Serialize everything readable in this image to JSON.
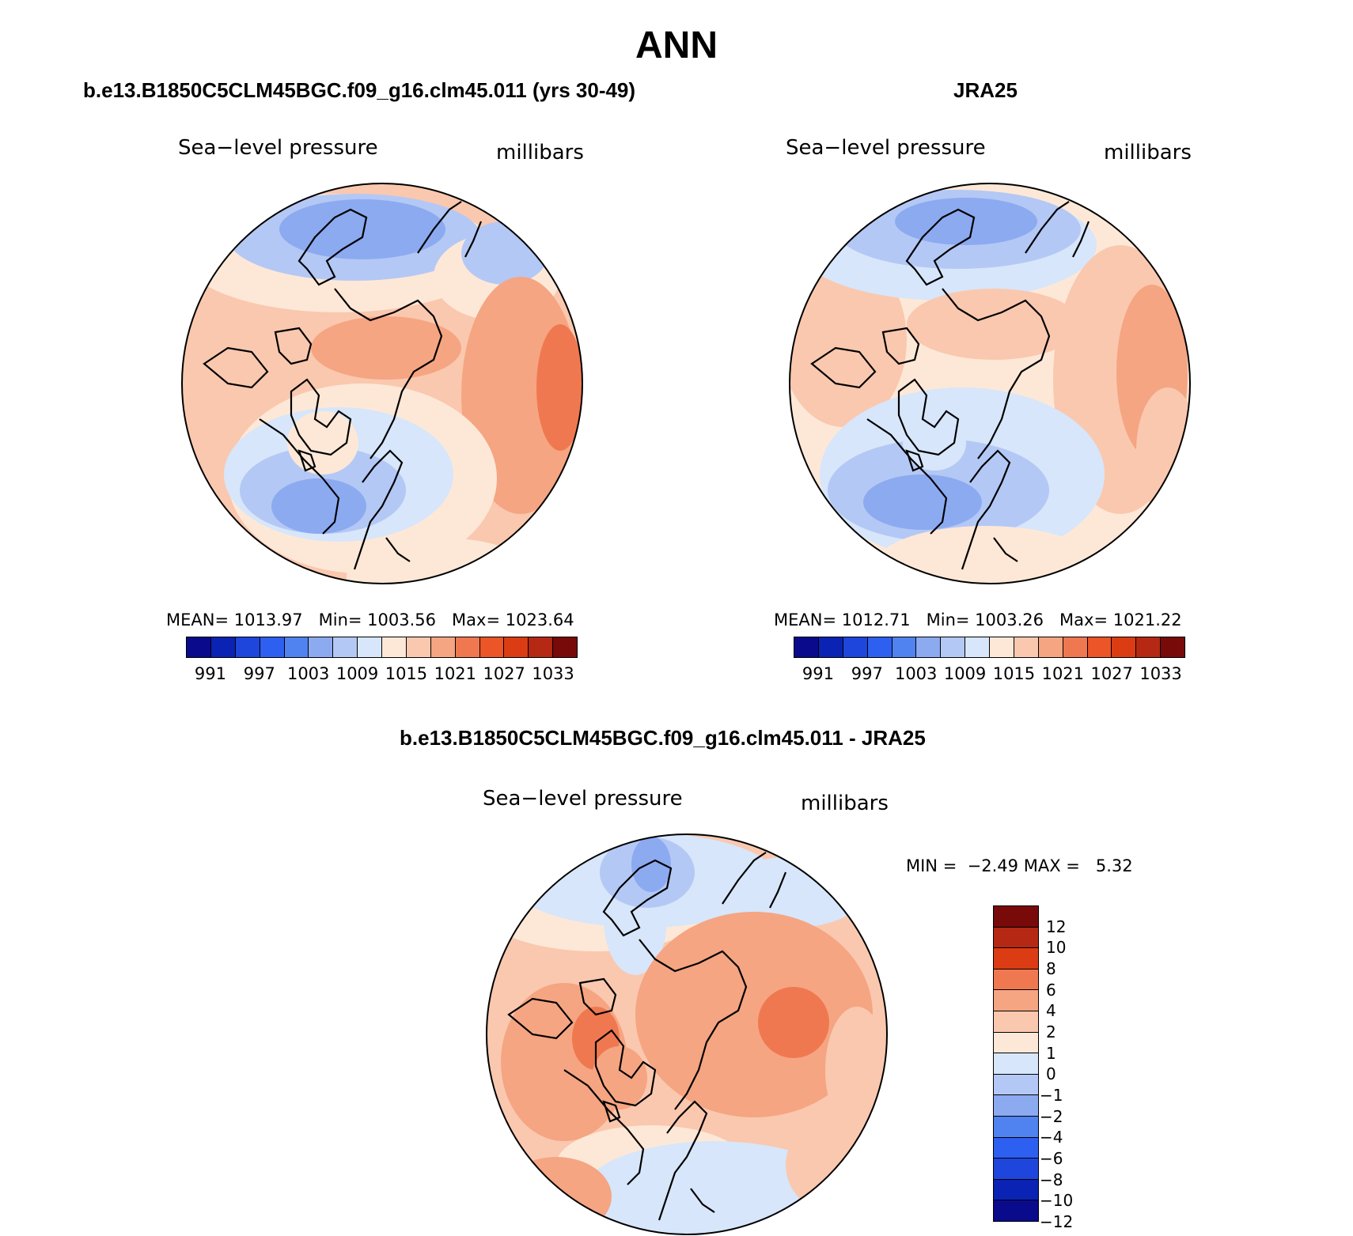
{
  "title": "ANN",
  "panels": {
    "model": {
      "title": "b.e13.B1850C5CLM45BGC.f09_g16.clm45.011 (yrs 30-49)",
      "left_label": "Sea−level pressure",
      "right_label": "millibars",
      "stats": {
        "mean_label": "MEAN=",
        "mean": "1013.97",
        "min_label": "Min=",
        "min": "1003.56",
        "max_label": "Max=",
        "max": "1023.64"
      }
    },
    "obs": {
      "title": "JRA25",
      "left_label": "Sea−level pressure",
      "right_label": "millibars",
      "stats": {
        "mean_label": "MEAN=",
        "mean": "1012.71",
        "min_label": "Min=",
        "min": "1003.26",
        "max_label": "Max=",
        "max": "1021.22"
      }
    },
    "diff": {
      "title": "b.e13.B1850C5CLM45BGC.f09_g16.clm45.011 - JRA25",
      "left_label": "Sea−level pressure",
      "right_label": "millibars",
      "stats": {
        "min_label": "MIN =",
        "min": "−2.49",
        "max_label": "MAX =",
        "max": "5.32"
      }
    }
  },
  "colorbars": {
    "abs_colors": [
      "#0a0a8c",
      "#0a23b4",
      "#1e46dc",
      "#2d5ff0",
      "#5082f0",
      "#8caaf0",
      "#b4c8f5",
      "#d7e6fa",
      "#fde8d7",
      "#fac8af",
      "#f5a582",
      "#f07850",
      "#eb5528",
      "#dc3c14",
      "#b42814",
      "#780a0a"
    ],
    "abs_ticks": [
      "991",
      "997",
      "1003",
      "1009",
      "1015",
      "1021",
      "1027",
      "1033"
    ],
    "diff_colors": [
      "#780a0a",
      "#b42814",
      "#dc3c14",
      "#f07850",
      "#f5a582",
      "#fac8af",
      "#fde8d7",
      "#d7e6fa",
      "#b4c8f5",
      "#8caaf0",
      "#5082f0",
      "#2d5ff0",
      "#1e46dc",
      "#0a23b4",
      "#0a0a8c"
    ],
    "diff_ticks": [
      "12",
      "10",
      "8",
      "6",
      "4",
      "2",
      "1",
      "0",
      "−1",
      "−2",
      "−4",
      "−6",
      "−8",
      "−10",
      "−12"
    ]
  },
  "map_colors": {
    "blue_mid": "#8caaf0",
    "blue_light": "#b4c8f5",
    "blue_pale": "#d7e6fa",
    "neutral": "#fde8d7",
    "red_light": "#fac8af",
    "red_mid": "#f5a582",
    "red_strong": "#f07850",
    "coast": "#000000"
  }
}
